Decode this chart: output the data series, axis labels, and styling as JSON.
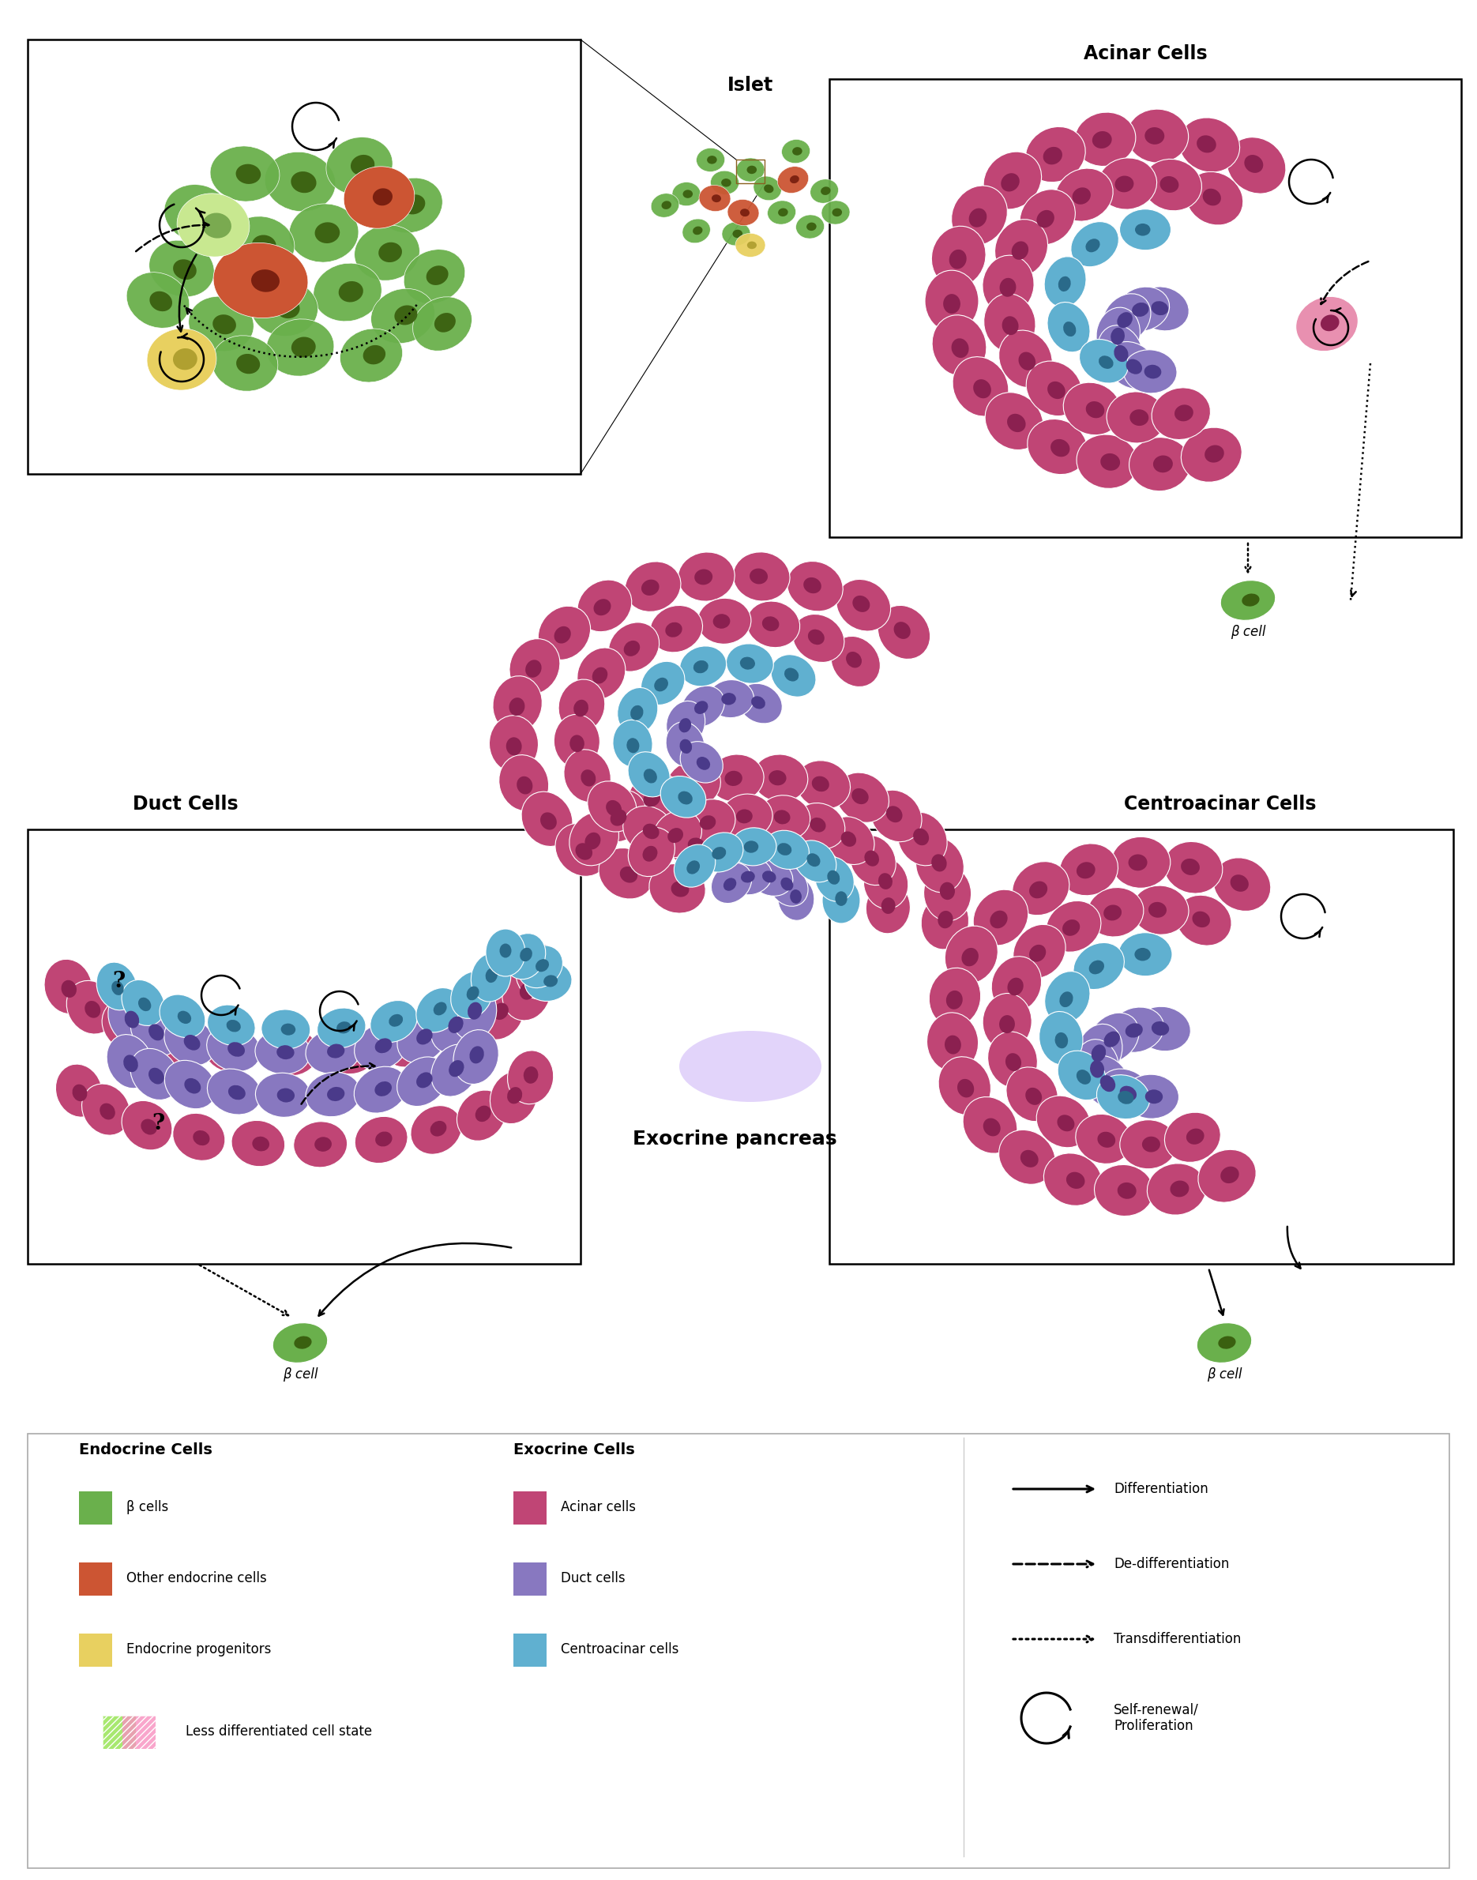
{
  "background_color": "#ffffff",
  "endocrine_title": "Endocrine Cells",
  "exocrine_title": "Exocrine Cells",
  "endocrine_items": [
    {
      "color": "#6ab04c",
      "label": "β cells"
    },
    {
      "color": "#cc5533",
      "label": "Other endocrine cells"
    },
    {
      "color": "#e8d060",
      "label": "Endocrine progenitors"
    }
  ],
  "exocrine_items": [
    {
      "color": "#c04575",
      "label": "Acinar cells"
    },
    {
      "color": "#8878c0",
      "label": "Duct cells"
    },
    {
      "color": "#60b0d0",
      "label": "Centroacinar cells"
    }
  ],
  "arrow_items": [
    {
      "style": "solid",
      "label": "Differentiation"
    },
    {
      "style": "dashed",
      "label": "De-differentiation"
    },
    {
      "style": "dotted",
      "label": "Transdifferentiation"
    },
    {
      "style": "curved",
      "label": "Self-renewal/\nProliferation"
    }
  ],
  "hatch_label": "Less differentiated cell state",
  "panel_labels": {
    "islet_zoom": "Islet",
    "acinar": "Acinar Cells",
    "duct": "Duct Cells",
    "centroacinar": "Centroacinar Cells",
    "exocrine": "Exocrine pancreas"
  },
  "beta_cell_color": "#6ab04c",
  "beta_cell_label": "β cell",
  "acinar_color": "#c04575",
  "acinar_nucleus": "#8b2050",
  "duct_color": "#8878c0",
  "duct_nucleus": "#4a3a8a",
  "centroacinar_color": "#60b0d0",
  "centroacinar_nucleus": "#2a6a8a",
  "other_endo_color": "#cc5533",
  "other_endo_nucleus": "#7a2010",
  "yellow_color": "#e8d060",
  "yellow_nucleus": "#b0a030",
  "light_green": "#c8e890",
  "light_green_nucleus": "#7aaa50",
  "beta_nucleus": "#3a6010",
  "pink_acinar": "#e890b0",
  "pink_nucleus": "#8b2050",
  "green_nucleus": "#3a6010"
}
